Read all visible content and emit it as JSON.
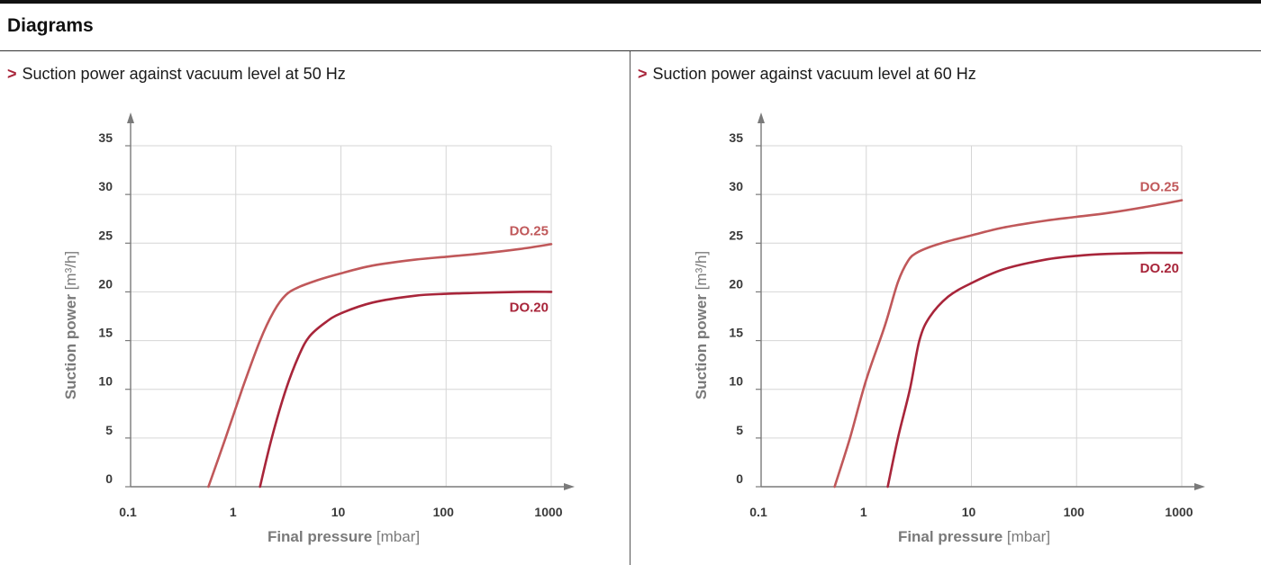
{
  "page": {
    "heading": "Diagrams"
  },
  "colors": {
    "DO.25": "#c0585a",
    "DO.20": "#a8253a",
    "axis": "#7a7a7a",
    "grid": "#d6d6d6",
    "marker": "#a8253a"
  },
  "panels": [
    {
      "marker": ">",
      "title": "Suction power against vacuum level at 50 Hz"
    },
    {
      "marker": ">",
      "title": "Suction power against vacuum level at 60 Hz"
    }
  ],
  "chart_data": [
    {
      "type": "line",
      "title": "Suction power against vacuum level at 50 Hz",
      "xlabel": "Final pressure",
      "xunit": "[mbar]",
      "ylabel": "Suction power",
      "yunit": "[m³/h]",
      "x_scale": "log",
      "xlim": [
        0.1,
        1000
      ],
      "ylim": [
        0,
        35
      ],
      "x_ticks": [
        {
          "value": 0.1,
          "label": "0.1"
        },
        {
          "value": 1,
          "label": "1"
        },
        {
          "value": 10,
          "label": "10"
        },
        {
          "value": 100,
          "label": "100"
        },
        {
          "value": 1000,
          "label": "1000"
        }
      ],
      "y_ticks": [
        {
          "value": 0,
          "label": "0"
        },
        {
          "value": 5,
          "label": "5"
        },
        {
          "value": 10,
          "label": "10"
        },
        {
          "value": 15,
          "label": "15"
        },
        {
          "value": 20,
          "label": "20"
        },
        {
          "value": 25,
          "label": "25"
        },
        {
          "value": 30,
          "label": "30"
        },
        {
          "value": 35,
          "label": "35"
        }
      ],
      "grid": true,
      "series": [
        {
          "name": "DO.25",
          "label_position": "above-right-end",
          "points": [
            [
              0.55,
              0
            ],
            [
              0.8,
              5
            ],
            [
              1.15,
              10
            ],
            [
              1.7,
              15
            ],
            [
              2.3,
              18
            ],
            [
              3,
              19.7
            ],
            [
              4,
              20.5
            ],
            [
              6,
              21.2
            ],
            [
              10,
              21.9
            ],
            [
              20,
              22.7
            ],
            [
              50,
              23.3
            ],
            [
              100,
              23.6
            ],
            [
              200,
              23.9
            ],
            [
              500,
              24.4
            ],
            [
              1000,
              24.9
            ]
          ]
        },
        {
          "name": "DO.20",
          "label_position": "below-right-end",
          "points": [
            [
              1.7,
              0
            ],
            [
              2.2,
              5
            ],
            [
              3,
              10
            ],
            [
              4,
              13.5
            ],
            [
              5,
              15.4
            ],
            [
              7,
              16.8
            ],
            [
              10,
              17.8
            ],
            [
              20,
              18.9
            ],
            [
              50,
              19.6
            ],
            [
              100,
              19.8
            ],
            [
              200,
              19.9
            ],
            [
              500,
              20
            ],
            [
              1000,
              20
            ]
          ]
        }
      ]
    },
    {
      "type": "line",
      "title": "Suction power against vacuum level at 60 Hz",
      "xlabel": "Final pressure",
      "xunit": "[mbar]",
      "ylabel": "Suction power",
      "yunit": "[m³/h]",
      "x_scale": "log",
      "xlim": [
        0.1,
        1000
      ],
      "ylim": [
        0,
        35
      ],
      "x_ticks": [
        {
          "value": 0.1,
          "label": "0.1"
        },
        {
          "value": 1,
          "label": "1"
        },
        {
          "value": 10,
          "label": "10"
        },
        {
          "value": 100,
          "label": "100"
        },
        {
          "value": 1000,
          "label": "1000"
        }
      ],
      "y_ticks": [
        {
          "value": 0,
          "label": "0"
        },
        {
          "value": 5,
          "label": "5"
        },
        {
          "value": 10,
          "label": "10"
        },
        {
          "value": 15,
          "label": "15"
        },
        {
          "value": 20,
          "label": "20"
        },
        {
          "value": 25,
          "label": "25"
        },
        {
          "value": 30,
          "label": "30"
        },
        {
          "value": 35,
          "label": "35"
        }
      ],
      "grid": true,
      "series": [
        {
          "name": "DO.25",
          "label_position": "above-right-end",
          "points": [
            [
              0.5,
              0
            ],
            [
              0.7,
              5
            ],
            [
              1,
              11
            ],
            [
              1.5,
              16.5
            ],
            [
              2,
              21
            ],
            [
              2.5,
              23.2
            ],
            [
              3,
              24
            ],
            [
              4,
              24.6
            ],
            [
              6,
              25.2
            ],
            [
              10,
              25.8
            ],
            [
              20,
              26.6
            ],
            [
              50,
              27.3
            ],
            [
              100,
              27.7
            ],
            [
              200,
              28.1
            ],
            [
              500,
              28.8
            ],
            [
              1000,
              29.4
            ]
          ]
        },
        {
          "name": "DO.20",
          "label_position": "below-right-end",
          "points": [
            [
              1.6,
              0
            ],
            [
              2,
              5
            ],
            [
              2.6,
              10
            ],
            [
              3.2,
              15
            ],
            [
              4,
              17.4
            ],
            [
              6,
              19.5
            ],
            [
              10,
              20.9
            ],
            [
              20,
              22.3
            ],
            [
              50,
              23.3
            ],
            [
              100,
              23.7
            ],
            [
              200,
              23.9
            ],
            [
              500,
              24
            ],
            [
              1000,
              24
            ]
          ]
        }
      ]
    }
  ]
}
